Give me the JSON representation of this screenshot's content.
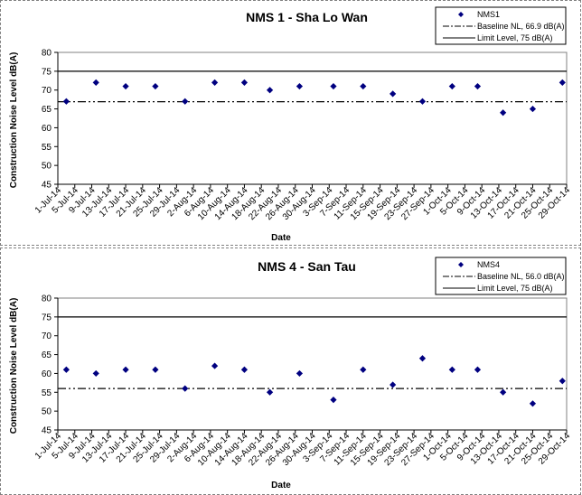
{
  "colors": {
    "marker": "#000080",
    "line": "#000000",
    "frame": "#808080"
  },
  "x_dates": [
    "1-Jul-14",
    "5-Jul-14",
    "9-Jul-14",
    "13-Jul-14",
    "17-Jul-14",
    "21-Jul-14",
    "25-Jul-14",
    "29-Jul-14",
    "2-Aug-14",
    "6-Aug-14",
    "10-Aug-14",
    "14-Aug-14",
    "18-Aug-14",
    "22-Aug-14",
    "26-Aug-14",
    "30-Aug-14",
    "3-Sep-14",
    "7-Sep-14",
    "11-Sep-14",
    "15-Sep-14",
    "19-Sep-14",
    "23-Sep-14",
    "27-Sep-14",
    "1-Oct-14",
    "5-Oct-14",
    "9-Oct-14",
    "13-Oct-14",
    "17-Oct-14",
    "21-Oct-14",
    "25-Oct-14",
    "29-Oct-14"
  ],
  "chart_data": [
    {
      "type": "scatter",
      "title": "NMS 1 - Sha Lo Wan",
      "xlabel": "Date",
      "ylabel": "Construction Noise Level  dB(A)",
      "ylim": [
        45,
        80
      ],
      "yticks": [
        45,
        50,
        55,
        60,
        65,
        70,
        75,
        80
      ],
      "legend_position": "top-right",
      "series": [
        {
          "name": "NMS1",
          "points": [
            {
              "x": "3-Jul-14",
              "y": 67
            },
            {
              "x": "10-Jul-14",
              "y": 72
            },
            {
              "x": "17-Jul-14",
              "y": 71
            },
            {
              "x": "24-Jul-14",
              "y": 71
            },
            {
              "x": "31-Jul-14",
              "y": 67
            },
            {
              "x": "7-Aug-14",
              "y": 72
            },
            {
              "x": "14-Aug-14",
              "y": 72
            },
            {
              "x": "20-Aug-14",
              "y": 70
            },
            {
              "x": "27-Aug-14",
              "y": 71
            },
            {
              "x": "4-Sep-14",
              "y": 71
            },
            {
              "x": "11-Sep-14",
              "y": 71
            },
            {
              "x": "18-Sep-14",
              "y": 69
            },
            {
              "x": "25-Sep-14",
              "y": 67
            },
            {
              "x": "2-Oct-14",
              "y": 71
            },
            {
              "x": "8-Oct-14",
              "y": 71
            },
            {
              "x": "14-Oct-14",
              "y": 64
            },
            {
              "x": "21-Oct-14",
              "y": 65
            },
            {
              "x": "28-Oct-14",
              "y": 72
            }
          ]
        }
      ],
      "baseline": {
        "label": "Baseline NL, 66.9 dB(A)",
        "value": 66.9
      },
      "limit": {
        "label": "Limit Level, 75 dB(A)",
        "value": 75
      }
    },
    {
      "type": "scatter",
      "title": "NMS 4 - San Tau",
      "xlabel": "Date",
      "ylabel": "Construction Noise Level  dB(A)",
      "ylim": [
        45,
        80
      ],
      "yticks": [
        45,
        50,
        55,
        60,
        65,
        70,
        75,
        80
      ],
      "legend_position": "top-right",
      "series": [
        {
          "name": "NMS4",
          "points": [
            {
              "x": "3-Jul-14",
              "y": 61
            },
            {
              "x": "10-Jul-14",
              "y": 60
            },
            {
              "x": "17-Jul-14",
              "y": 61
            },
            {
              "x": "24-Jul-14",
              "y": 61
            },
            {
              "x": "31-Jul-14",
              "y": 56
            },
            {
              "x": "7-Aug-14",
              "y": 62
            },
            {
              "x": "14-Aug-14",
              "y": 61
            },
            {
              "x": "20-Aug-14",
              "y": 55
            },
            {
              "x": "27-Aug-14",
              "y": 60
            },
            {
              "x": "4-Sep-14",
              "y": 53
            },
            {
              "x": "11-Sep-14",
              "y": 61
            },
            {
              "x": "18-Sep-14",
              "y": 57
            },
            {
              "x": "25-Sep-14",
              "y": 64
            },
            {
              "x": "2-Oct-14",
              "y": 61
            },
            {
              "x": "8-Oct-14",
              "y": 61
            },
            {
              "x": "14-Oct-14",
              "y": 55
            },
            {
              "x": "21-Oct-14",
              "y": 52
            },
            {
              "x": "28-Oct-14",
              "y": 58
            }
          ]
        }
      ],
      "baseline": {
        "label": "Baseline NL, 56.0 dB(A)",
        "value": 56.0
      },
      "limit": {
        "label": "Limit Level, 75 dB(A)",
        "value": 75
      }
    }
  ]
}
